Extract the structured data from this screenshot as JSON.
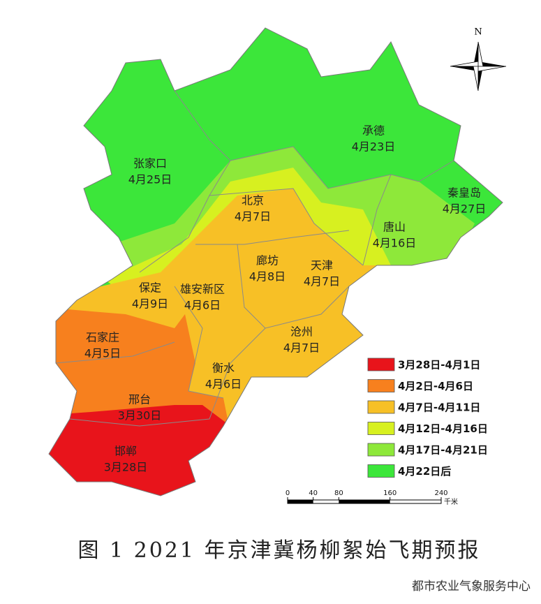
{
  "map": {
    "north": "N",
    "cities": [
      {
        "name": "张家口",
        "date": "4月25日"
      },
      {
        "name": "承德",
        "date": "4月23日"
      },
      {
        "name": "秦皇岛",
        "date": "4月27日"
      },
      {
        "name": "唐山",
        "date": "4月16日"
      },
      {
        "name": "北京",
        "date": "4月7日"
      },
      {
        "name": "廊坊",
        "date": "4月8日"
      },
      {
        "name": "天津",
        "date": "4月7日"
      },
      {
        "name": "保定",
        "date": "4月9日"
      },
      {
        "name": "雄安新区",
        "date": "4月6日"
      },
      {
        "name": "石家庄",
        "date": "4月5日"
      },
      {
        "name": "沧州",
        "date": "4月7日"
      },
      {
        "name": "衡水",
        "date": "4月6日"
      },
      {
        "name": "邢台",
        "date": "3月30日"
      },
      {
        "name": "邯郸",
        "date": "3月28日"
      }
    ],
    "legend": [
      {
        "label": "3月28日-4月1日",
        "color": "#e8141b"
      },
      {
        "label": "4月2日-4月6日",
        "color": "#f7801e"
      },
      {
        "label": "4月7日-4月11日",
        "color": "#f7c026"
      },
      {
        "label": "4月12日-4月16日",
        "color": "#d7f020"
      },
      {
        "label": "4月17日-4月21日",
        "color": "#8ee83a"
      },
      {
        "label": "4月22日后",
        "color": "#3ce63a"
      }
    ],
    "scale": {
      "ticks": [
        0,
        40,
        80,
        160,
        240
      ],
      "unit": "千米"
    }
  },
  "caption": "图 1 2021 年京津冀杨柳絮始飞期预报",
  "source": "都市农业气象服务中心"
}
